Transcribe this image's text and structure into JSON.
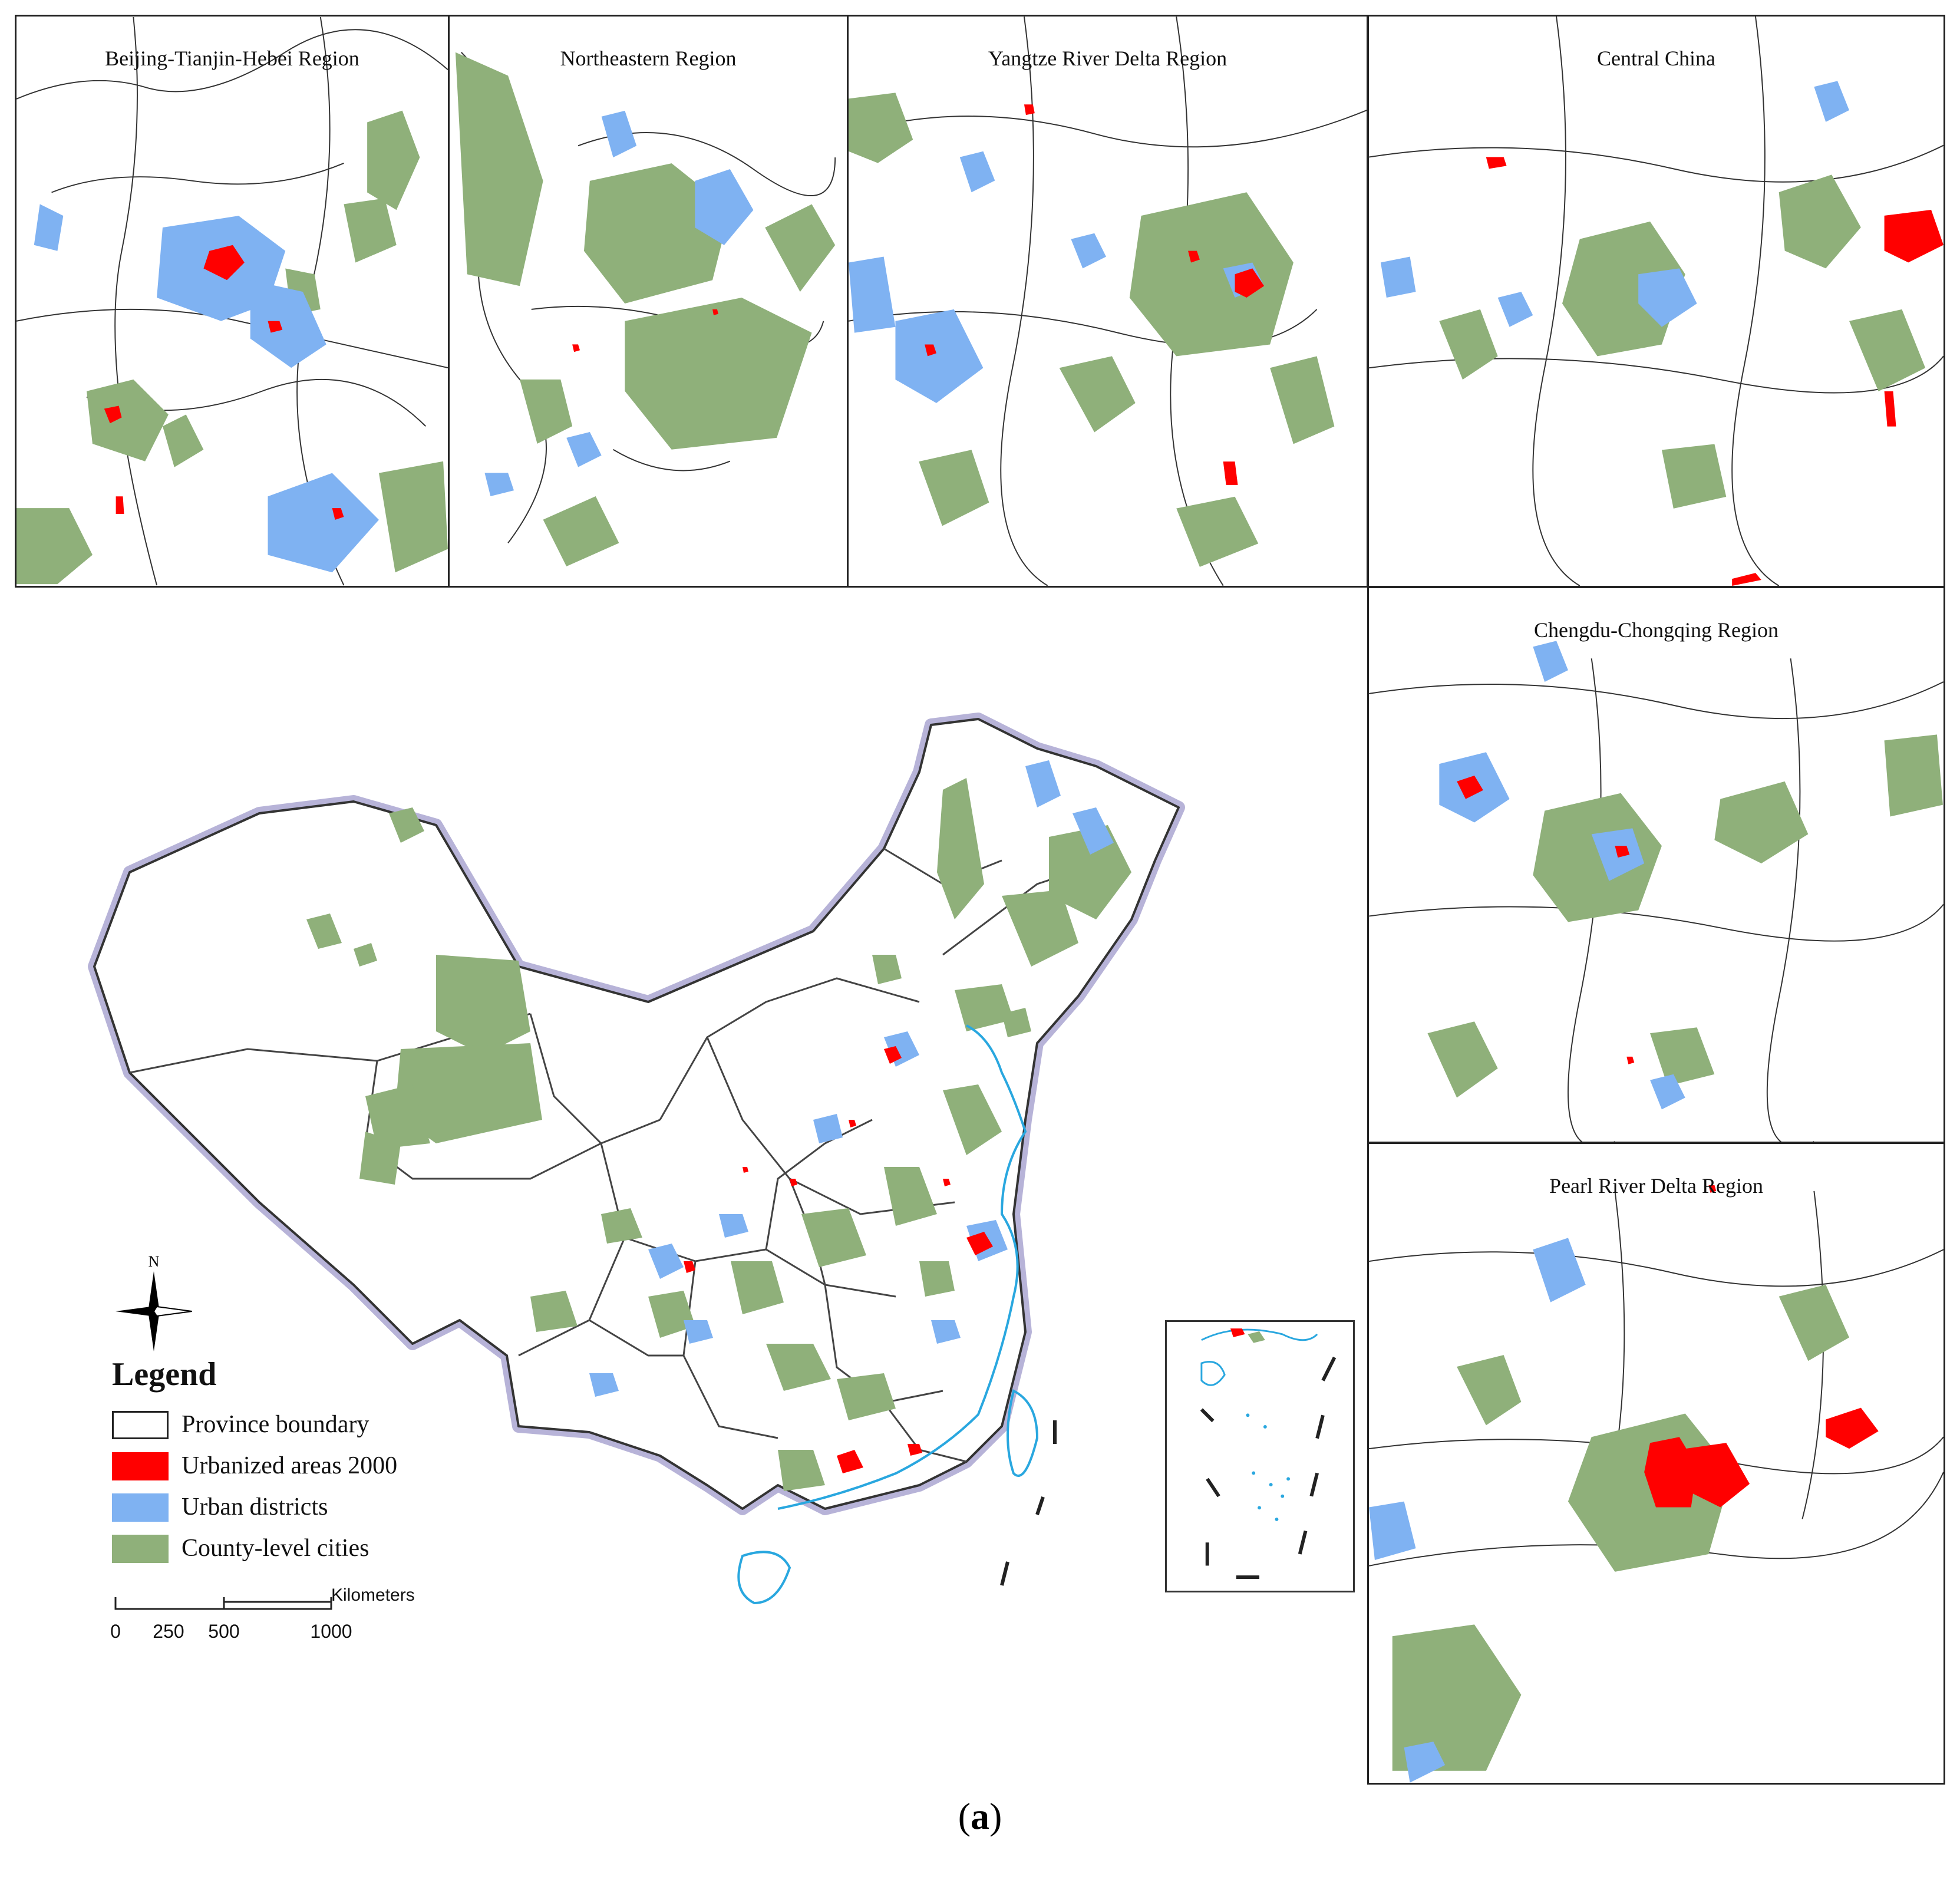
{
  "colors": {
    "urbanized": "#ff0000",
    "urban_districts": "#7fb2f2",
    "county_cities": "#8fb07a",
    "boundary": "#333333",
    "coast": "#29a7df",
    "border_halo": "#b7b3d8"
  },
  "panels": [
    {
      "id": "bth",
      "title": "Beijing-Tianjin-Hebei Region"
    },
    {
      "id": "ne",
      "title": "Northeastern Region"
    },
    {
      "id": "yrd",
      "title": "Yangtze River Delta Region"
    },
    {
      "id": "cc",
      "title": "Central China"
    },
    {
      "id": "chq",
      "title": "Chengdu-Chongqing Region"
    },
    {
      "id": "prd",
      "title": "Pearl River Delta Region"
    }
  ],
  "compass": {
    "label": "N"
  },
  "legend": {
    "title": "Legend",
    "items": [
      {
        "label": "Province boundary",
        "swatch": "outline"
      },
      {
        "label": "Urbanized areas 2000",
        "swatch": "urbanized"
      },
      {
        "label": "Urban districts",
        "swatch": "urban_districts"
      },
      {
        "label": "County-level cities",
        "swatch": "county_cities"
      }
    ]
  },
  "scalebar": {
    "unit": "Kilometers",
    "ticks": [
      "0",
      "250",
      "500",
      "1000"
    ]
  },
  "caption": {
    "open": "(",
    "letter": "a",
    "close": ")"
  }
}
